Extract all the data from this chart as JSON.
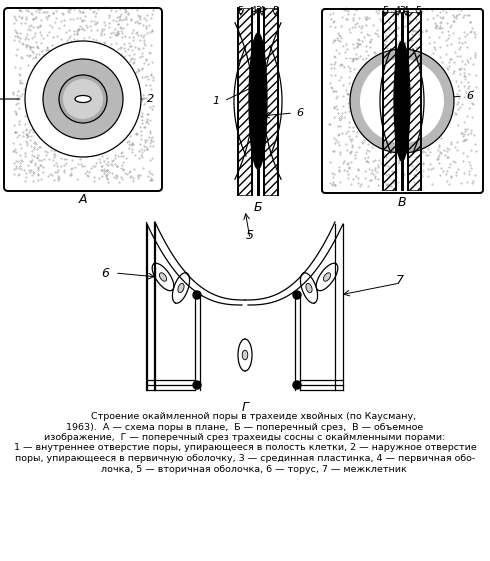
{
  "bg_color": "#ffffff",
  "caption_line1": "      Строение окаймленной поры в трахеиде хвойных (по Каусману,",
  "caption_line2": "1963).  А — схема поры в плане,  Б — поперечный срез,  В — объемное",
  "caption_line3": "изображение,  Г — поперечный срез трахеиды сосны с окаймленными порами:",
  "caption_line4": "1 — внутреннее отверстие поры, упирающееся в полость клетки, 2 — наружное отверстие",
  "caption_line5": "поры, упирающееся в первичную оболочку, 3 — срединная пластинка, 4 — первичная обо-",
  "caption_line6": "      лочка, 5 — вторичная оболочка, 6 — торус, 7 — межклетник"
}
